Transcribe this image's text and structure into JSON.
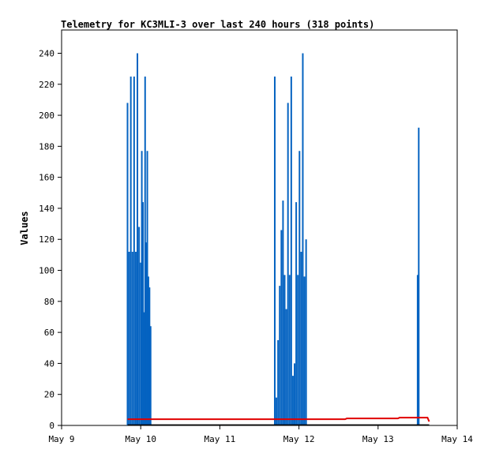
{
  "chart_data": {
    "type": "line",
    "title": "Telemetry for KC3MLI-3 over last 240 hours (318 points)",
    "xlabel": "",
    "ylabel": "Values",
    "x_ticks": [
      "May 9",
      "May 10",
      "May 11",
      "May 12",
      "May 13",
      "May 14"
    ],
    "xlim": [
      "May 9",
      "May 14"
    ],
    "y_ticks": [
      0,
      20,
      40,
      60,
      80,
      100,
      120,
      140,
      160,
      180,
      200,
      220,
      240
    ],
    "ylim": [
      0,
      255
    ],
    "grid": false,
    "legend": "none",
    "colors": {
      "spikes": "#0563c1",
      "red_series": "#e00000",
      "black_series": "#000000"
    },
    "series": [
      {
        "style": "spikes",
        "x": [
          "May 9 20:00",
          "May 9 20:30",
          "May 9 21:00",
          "May 9 21:30",
          "May 9 22:00",
          "May 9 22:30",
          "May 9 23:00",
          "May 9 23:30",
          "May 10 00:00",
          "May 10 00:20",
          "May 10 00:40",
          "May 10 01:00",
          "May 10 01:20",
          "May 10 01:40",
          "May 10 02:00",
          "May 10 02:20",
          "May 10 02:40",
          "May 10 03:00",
          "May 10 03:20",
          "May 11 16:40",
          "May 11 17:10",
          "May 11 17:40",
          "May 11 18:10",
          "May 11 18:40",
          "May 11 19:10",
          "May 11 19:40",
          "May 11 20:10",
          "May 11 20:40",
          "May 11 21:10",
          "May 11 21:40",
          "May 11 22:10",
          "May 11 22:40",
          "May 11 23:10",
          "May 11 23:40",
          "May 12 00:10",
          "May 12 00:40",
          "May 12 01:10",
          "May 12 01:40",
          "May 12 02:10",
          "May 12 02:40",
          "May 12 03:10",
          "May 13 12:00",
          "May 13 12:20"
        ],
        "values": [
          208,
          112,
          225,
          112,
          225,
          112,
          240,
          128,
          105,
          177,
          144,
          73,
          225,
          118,
          177,
          96,
          89,
          64,
          0,
          225,
          18,
          55,
          90,
          126,
          145,
          97,
          75,
          208,
          97,
          225,
          32,
          40,
          144,
          97,
          177,
          112,
          240,
          96,
          120,
          0,
          0,
          97,
          192
        ]
      },
      {
        "style": "step",
        "x": [
          "May 9 20:00",
          "May 12 14:00",
          "May 12 14:30",
          "May 13 06:00",
          "May 13 06:30",
          "May 13 15:00",
          "May 13 15:30"
        ],
        "values": [
          4,
          4,
          4.5,
          4.5,
          5,
          5,
          2.5
        ]
      },
      {
        "style": "line",
        "x": [
          "May 9 20:00",
          "May 13 15:30"
        ],
        "values": [
          0.3,
          0.3
        ]
      }
    ]
  }
}
